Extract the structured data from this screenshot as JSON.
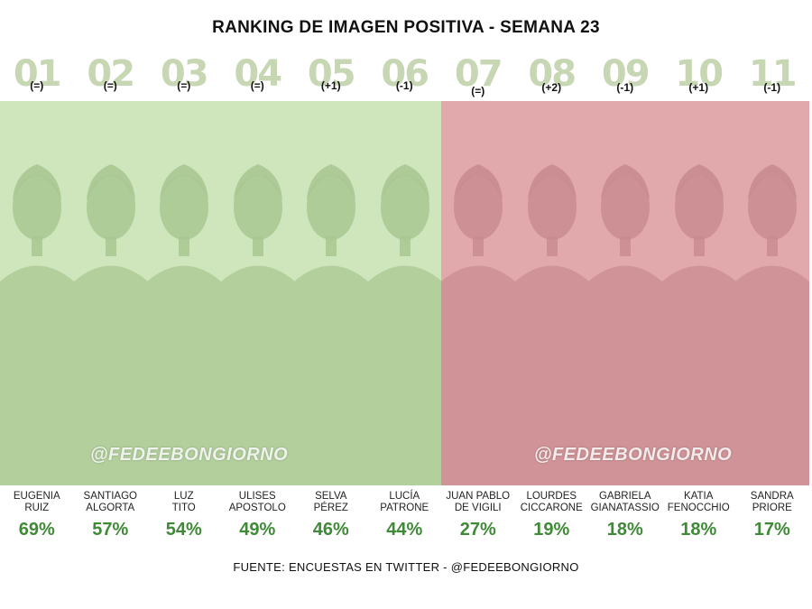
{
  "title": "RANKING DE IMAGEN POSITIVA - SEMANA 23",
  "watermark": "@FEDEEBONGIORNO",
  "footer": "FUENTE: ENCUESTAS EN TWITTER - @FEDEEBONGIORNO",
  "colors": {
    "green_zone": "#cfe6bd",
    "red_zone": "#e2a9ac",
    "green_tint": "#a8c792",
    "red_tint": "#c98c90",
    "percent": "#3f8a37",
    "rank_number": "#c7d6b3"
  },
  "contestants": [
    {
      "rank": "01",
      "change": "(=)",
      "name_line1": "EUGENIA",
      "name_line2": "RUIZ",
      "percent": "69%",
      "zone": "green"
    },
    {
      "rank": "02",
      "change": "(=)",
      "name_line1": "SANTIAGO",
      "name_line2": "ALGORTA",
      "percent": "57%",
      "zone": "green"
    },
    {
      "rank": "03",
      "change": "(=)",
      "name_line1": "LUZ",
      "name_line2": "TITO",
      "percent": "54%",
      "zone": "green"
    },
    {
      "rank": "04",
      "change": "(=)",
      "name_line1": "ULISES",
      "name_line2": "APOSTOLO",
      "percent": "49%",
      "zone": "green"
    },
    {
      "rank": "05",
      "change": "(+1)",
      "name_line1": "SELVA",
      "name_line2": "PÉREZ",
      "percent": "46%",
      "zone": "green"
    },
    {
      "rank": "06",
      "change": "(-1)",
      "name_line1": "LUCÍA",
      "name_line2": "PATRONE",
      "percent": "44%",
      "zone": "green"
    },
    {
      "rank": "07",
      "change": "(=)",
      "name_line1": "JUAN PABLO",
      "name_line2": "DE VIGILI",
      "percent": "27%",
      "zone": "red"
    },
    {
      "rank": "08",
      "change": "(+2)",
      "name_line1": "LOURDES",
      "name_line2": "CICCARONE",
      "percent": "19%",
      "zone": "red"
    },
    {
      "rank": "09",
      "change": "(-1)",
      "name_line1": "GABRIELA",
      "name_line2": "GIANATASSIO",
      "percent": "18%",
      "zone": "red"
    },
    {
      "rank": "10",
      "change": "(+1)",
      "name_line1": "KATIA",
      "name_line2": "FENOCCHIO",
      "percent": "18%",
      "zone": "red"
    },
    {
      "rank": "11",
      "change": "(-1)",
      "name_line1": "SANDRA",
      "name_line2": "PRIORE",
      "percent": "17%",
      "zone": "red"
    }
  ]
}
